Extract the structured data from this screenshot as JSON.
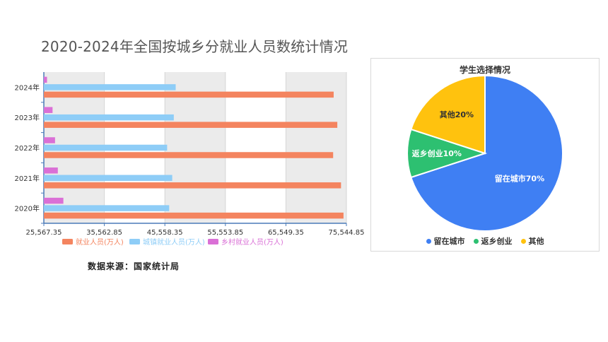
{
  "page": {
    "title": "2020-2024年全国按城乡分就业人员数统计情况",
    "source_note": "数据来源：国家统计局"
  },
  "chart_data": [
    {
      "type": "bar",
      "orientation": "horizontal",
      "categories": [
        "2020年",
        "2021年",
        "2022年",
        "2023年",
        "2024年"
      ],
      "series": [
        {
          "name": "就业人员(万人)",
          "color": "#f4845f",
          "values": [
            75064,
            74652,
            73351,
            74041,
            73439
          ]
        },
        {
          "name": "城镇就业人员(万人)",
          "color": "#8ecdf7",
          "values": [
            46271,
            46773,
            45931,
            47032,
            47345
          ]
        },
        {
          "name": "乡村就业人员(万人)",
          "color": "#da70d6",
          "values": [
            28793,
            27879,
            27420,
            27009,
            26094
          ]
        }
      ],
      "xticks": [
        "25,567.35",
        "35,562.85",
        "45,558.35",
        "55,553.85",
        "65,549.35",
        "75,544.85"
      ],
      "xlim": [
        25567.35,
        75544.85
      ],
      "grid": true,
      "legend_position": "bottom"
    },
    {
      "type": "pie",
      "title": "学生选择情况",
      "slices": [
        {
          "label": "留在城市",
          "value": 70,
          "display": "留在城市70%",
          "color": "#3f7ff3"
        },
        {
          "label": "返乡创业",
          "value": 10,
          "display": "返乡创业10%",
          "color": "#2dc071"
        },
        {
          "label": "其他",
          "value": 20,
          "display": "其他20%",
          "color": "#ffc20e"
        }
      ],
      "legend_position": "bottom"
    }
  ]
}
